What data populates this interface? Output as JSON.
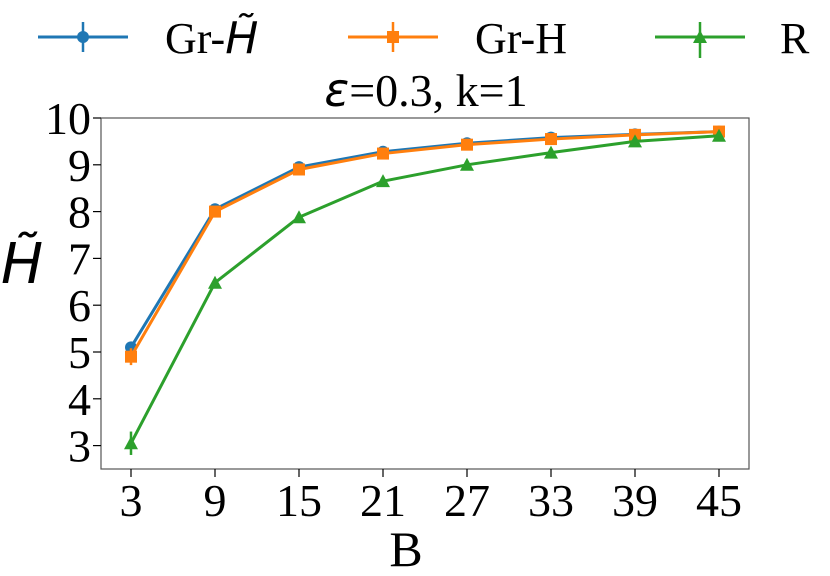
{
  "chart_data": {
    "type": "line",
    "title_parts": {
      "symbol": "ε",
      "rest": "=0.3, k=1"
    },
    "xlabel": "B",
    "ylabel": "H̃",
    "x": [
      3,
      9,
      15,
      21,
      27,
      33,
      39,
      45
    ],
    "xticks": [
      "3",
      "9",
      "15",
      "21",
      "27",
      "33",
      "39",
      "45"
    ],
    "yticks": [
      "3",
      "4",
      "5",
      "6",
      "7",
      "8",
      "9",
      "10"
    ],
    "ylim": [
      2.5,
      10.0
    ],
    "grid": false,
    "legend_placement": "top",
    "series": [
      {
        "legend_label": {
          "prefix": "Gr-",
          "symbol": "H̃"
        },
        "color": "#1f77b4",
        "marker": "circle",
        "values": [
          5.1,
          8.05,
          8.95,
          9.28,
          9.46,
          9.58,
          9.65,
          9.71
        ]
      },
      {
        "legend_label": {
          "prefix": "Gr-H",
          "symbol": ""
        },
        "color": "#ff7f0e",
        "marker": "square",
        "values": [
          4.9,
          8.0,
          8.9,
          9.24,
          9.43,
          9.55,
          9.64,
          9.71
        ],
        "error_at_first": 0.18
      },
      {
        "legend_label": {
          "prefix": "R",
          "symbol": ""
        },
        "color": "#2ca02c",
        "marker": "triangle",
        "values": [
          3.05,
          6.48,
          7.88,
          8.65,
          9.0,
          9.26,
          9.5,
          9.62
        ],
        "error_at_first": 0.25
      }
    ]
  }
}
